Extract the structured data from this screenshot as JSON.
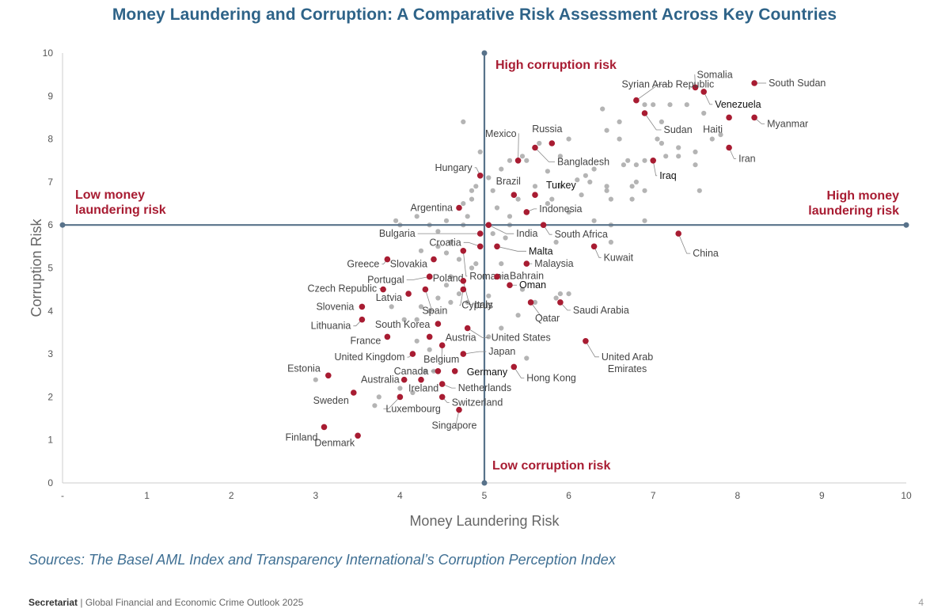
{
  "page": {
    "title": "Money Laundering and Corruption: A Comparative Risk Assessment Across Key Countries",
    "source": "Sources: The Basel AML Index and Transparency International’s Corruption Perception Index",
    "footer_brand": "Secretariat",
    "footer_text": " | Global Financial and Economic Crime Outlook 2025",
    "page_number": "4"
  },
  "colors": {
    "highlight": "#a81c32",
    "other": "#b4b4b4",
    "axis": "#58728a",
    "quadrant_label": "#a81c32",
    "title": "#2e6388"
  },
  "chart_data": {
    "type": "scatter",
    "xlabel": "Money Laundering Risk",
    "ylabel": "Corruption Risk",
    "xlim": [
      0,
      10
    ],
    "ylim": [
      0,
      10
    ],
    "xticks": [
      "-",
      "1",
      "2",
      "3",
      "4",
      "5",
      "6",
      "7",
      "8",
      "9",
      "10"
    ],
    "yticks": [
      "0",
      "1",
      "2",
      "3",
      "4",
      "5",
      "6",
      "7",
      "8",
      "9",
      "10"
    ],
    "grid": false,
    "reference_lines": {
      "x": 5,
      "y": 6
    },
    "quadrant_labels": [
      {
        "text": [
          "High corruption risk"
        ]
      },
      {
        "text": [
          "Low corruption risk"
        ]
      },
      {
        "text": [
          "Low money",
          "laundering risk"
        ]
      },
      {
        "text": [
          "High money",
          "laundering risk"
        ]
      }
    ],
    "labeled_points": [
      {
        "name": "Somalia",
        "x": 7.5,
        "y": 9.2
      },
      {
        "name": "South Sudan",
        "x": 8.2,
        "y": 9.3
      },
      {
        "name": "Syrian Arab Republic",
        "x": 6.8,
        "y": 8.9
      },
      {
        "name": "Venezuela",
        "x": 7.6,
        "y": 9.1
      },
      {
        "name": "Sudan",
        "x": 6.9,
        "y": 8.6
      },
      {
        "name": "Haiti",
        "x": 7.9,
        "y": 8.5
      },
      {
        "name": "Myanmar",
        "x": 8.2,
        "y": 8.5
      },
      {
        "name": "Iran",
        "x": 7.9,
        "y": 7.8
      },
      {
        "name": "Russia",
        "x": 5.8,
        "y": 7.9
      },
      {
        "name": "Mexico",
        "x": 5.4,
        "y": 7.5
      },
      {
        "name": "Bangladesh",
        "x": 5.6,
        "y": 7.8
      },
      {
        "name": "Iraq",
        "x": 7.0,
        "y": 7.5
      },
      {
        "name": "Hungary",
        "x": 4.95,
        "y": 7.15
      },
      {
        "name": "Brazil",
        "x": 5.35,
        "y": 6.7
      },
      {
        "name": "Turkey",
        "x": 5.6,
        "y": 6.7
      },
      {
        "name": "Argentina",
        "x": 4.7,
        "y": 6.4
      },
      {
        "name": "Indonesia",
        "x": 5.5,
        "y": 6.3
      },
      {
        "name": "India",
        "x": 5.05,
        "y": 6.0
      },
      {
        "name": "South Africa",
        "x": 5.7,
        "y": 6.0
      },
      {
        "name": "Bulgaria",
        "x": 4.95,
        "y": 5.8
      },
      {
        "name": "China",
        "x": 7.3,
        "y": 5.8
      },
      {
        "name": "Croatia",
        "x": 4.95,
        "y": 5.5
      },
      {
        "name": "Malta",
        "x": 5.15,
        "y": 5.5
      },
      {
        "name": "Kuwait",
        "x": 6.3,
        "y": 5.5
      },
      {
        "name": "Greece",
        "x": 3.85,
        "y": 5.2
      },
      {
        "name": "Slovakia",
        "x": 4.4,
        "y": 5.2
      },
      {
        "name": "Romania",
        "x": 4.75,
        "y": 5.4
      },
      {
        "name": "Malaysia",
        "x": 5.5,
        "y": 5.1
      },
      {
        "name": "Poland",
        "x": 4.35,
        "y": 4.8
      },
      {
        "name": "Portugal",
        "x": 4.35,
        "y": 4.8
      },
      {
        "name": "Bahrain",
        "x": 5.15,
        "y": 4.8
      },
      {
        "name": "Oman",
        "x": 5.3,
        "y": 4.6
      },
      {
        "name": "Czech Republic",
        "x": 3.8,
        "y": 4.5
      },
      {
        "name": "Spain",
        "x": 4.3,
        "y": 4.5
      },
      {
        "name": "Italy",
        "x": 4.75,
        "y": 4.7
      },
      {
        "name": "Cyprus",
        "x": 4.75,
        "y": 4.5
      },
      {
        "name": "Latvia",
        "x": 4.1,
        "y": 4.4
      },
      {
        "name": "Slovenia",
        "x": 3.55,
        "y": 4.1
      },
      {
        "name": "Qatar",
        "x": 5.55,
        "y": 4.2
      },
      {
        "name": "Saudi Arabia",
        "x": 5.9,
        "y": 4.2
      },
      {
        "name": "Lithuania",
        "x": 3.55,
        "y": 3.8
      },
      {
        "name": "South Korea",
        "x": 4.45,
        "y": 3.7
      },
      {
        "name": "United States",
        "x": 4.8,
        "y": 3.6
      },
      {
        "name": "France",
        "x": 3.85,
        "y": 3.4
      },
      {
        "name": "Austria",
        "x": 4.35,
        "y": 3.4
      },
      {
        "name": "United Kingdom",
        "x": 4.15,
        "y": 3.0
      },
      {
        "name": "Belgium",
        "x": 4.5,
        "y": 3.2
      },
      {
        "name": "Japan",
        "x": 4.75,
        "y": 3.0
      },
      {
        "name": "United Arab Emirates",
        "x": 6.2,
        "y": 3.3
      },
      {
        "name": "Estonia",
        "x": 3.15,
        "y": 2.5
      },
      {
        "name": "Canada",
        "x": 4.45,
        "y": 2.6
      },
      {
        "name": "Germany",
        "x": 4.65,
        "y": 2.6
      },
      {
        "name": "Hong Kong",
        "x": 5.35,
        "y": 2.7
      },
      {
        "name": "Australia",
        "x": 4.05,
        "y": 2.4
      },
      {
        "name": "Ireland",
        "x": 4.25,
        "y": 2.4
      },
      {
        "name": "Netherlands",
        "x": 4.5,
        "y": 2.3
      },
      {
        "name": "Sweden",
        "x": 3.45,
        "y": 2.1
      },
      {
        "name": "Switzerland",
        "x": 4.5,
        "y": 2.0
      },
      {
        "name": "Luxembourg",
        "x": 4.0,
        "y": 2.0
      },
      {
        "name": "Singapore",
        "x": 4.7,
        "y": 1.7
      },
      {
        "name": "Finland",
        "x": 3.1,
        "y": 1.3
      },
      {
        "name": "Denmark",
        "x": 3.5,
        "y": 1.1
      }
    ],
    "other_points": [
      [
        4.75,
        8.4
      ],
      [
        4.95,
        7.7
      ],
      [
        5.2,
        7.3
      ],
      [
        5.3,
        7.5
      ],
      [
        5.5,
        7.5
      ],
      [
        5.45,
        7.6
      ],
      [
        5.65,
        7.9
      ],
      [
        5.9,
        7.6
      ],
      [
        6.0,
        8.0
      ],
      [
        5.75,
        7.25
      ],
      [
        5.6,
        6.9
      ],
      [
        5.9,
        6.9
      ],
      [
        6.1,
        7.05
      ],
      [
        6.3,
        7.3
      ],
      [
        6.25,
        7.0
      ],
      [
        6.15,
        6.7
      ],
      [
        5.8,
        6.6
      ],
      [
        6.0,
        6.3
      ],
      [
        6.4,
        8.7
      ],
      [
        6.6,
        8.0
      ],
      [
        6.45,
        8.2
      ],
      [
        6.45,
        6.9
      ],
      [
        6.45,
        6.8
      ],
      [
        6.75,
        6.9
      ],
      [
        6.7,
        7.5
      ],
      [
        6.8,
        7.0
      ],
      [
        6.9,
        6.8
      ],
      [
        6.65,
        7.4
      ],
      [
        6.9,
        7.5
      ],
      [
        6.8,
        7.4
      ],
      [
        7.0,
        7.5
      ],
      [
        7.3,
        7.6
      ],
      [
        7.3,
        7.8
      ],
      [
        7.5,
        7.7
      ],
      [
        7.5,
        7.4
      ],
      [
        7.55,
        6.8
      ],
      [
        6.9,
        8.8
      ],
      [
        7.0,
        8.8
      ],
      [
        7.1,
        8.4
      ],
      [
        7.2,
        8.8
      ],
      [
        7.4,
        8.8
      ],
      [
        7.6,
        8.6
      ],
      [
        7.7,
        8.0
      ],
      [
        7.8,
        8.1
      ],
      [
        6.6,
        8.4
      ],
      [
        7.1,
        7.9
      ],
      [
        7.15,
        7.6
      ],
      [
        7.05,
        8.0
      ],
      [
        6.2,
        7.15
      ],
      [
        6.5,
        6.6
      ],
      [
        6.75,
        6.6
      ],
      [
        6.3,
        6.1
      ],
      [
        6.5,
        6.0
      ],
      [
        6.9,
        6.1
      ],
      [
        4.85,
        6.6
      ],
      [
        4.75,
        6.5
      ],
      [
        4.85,
        6.8
      ],
      [
        4.8,
        6.2
      ],
      [
        4.55,
        6.1
      ],
      [
        4.35,
        6.0
      ],
      [
        4.2,
        6.2
      ],
      [
        4.0,
        6.0
      ],
      [
        3.95,
        6.1
      ],
      [
        4.75,
        6.0
      ],
      [
        4.9,
        6.9
      ],
      [
        5.05,
        7.1
      ],
      [
        5.1,
        6.8
      ],
      [
        5.3,
        6.2
      ],
      [
        5.4,
        6.6
      ],
      [
        5.75,
        6.5
      ],
      [
        5.3,
        6.0
      ],
      [
        5.15,
        6.4
      ],
      [
        4.45,
        5.85
      ],
      [
        4.6,
        5.6
      ],
      [
        4.7,
        5.2
      ],
      [
        4.85,
        5.0
      ],
      [
        4.6,
        4.8
      ],
      [
        4.55,
        4.6
      ],
      [
        4.7,
        4.4
      ],
      [
        4.8,
        4.2
      ],
      [
        5.05,
        4.35
      ],
      [
        4.6,
        4.2
      ],
      [
        4.45,
        4.3
      ],
      [
        4.35,
        4.0
      ],
      [
        4.25,
        4.1
      ],
      [
        4.2,
        3.8
      ],
      [
        4.05,
        3.8
      ],
      [
        3.9,
        4.1
      ],
      [
        5.1,
        5.8
      ],
      [
        5.2,
        5.1
      ],
      [
        5.45,
        4.5
      ],
      [
        5.6,
        4.2
      ],
      [
        5.85,
        4.3
      ],
      [
        5.9,
        4.4
      ],
      [
        6.0,
        4.4
      ],
      [
        5.4,
        3.9
      ],
      [
        5.2,
        3.6
      ],
      [
        5.05,
        3.4
      ],
      [
        5.5,
        2.9
      ],
      [
        4.35,
        3.1
      ],
      [
        4.65,
        2.6
      ],
      [
        4.4,
        2.6
      ],
      [
        4.3,
        2.6
      ],
      [
        4.0,
        2.2
      ],
      [
        3.75,
        2.0
      ],
      [
        3.7,
        1.8
      ],
      [
        3.0,
        2.4
      ],
      [
        4.15,
        2.1
      ],
      [
        4.2,
        3.3
      ],
      [
        4.9,
        5.1
      ],
      [
        5.0,
        4.8
      ],
      [
        4.25,
        5.4
      ],
      [
        4.45,
        5.5
      ],
      [
        4.55,
        5.35
      ],
      [
        5.25,
        5.7
      ],
      [
        5.85,
        5.6
      ],
      [
        6.5,
        5.6
      ]
    ]
  }
}
